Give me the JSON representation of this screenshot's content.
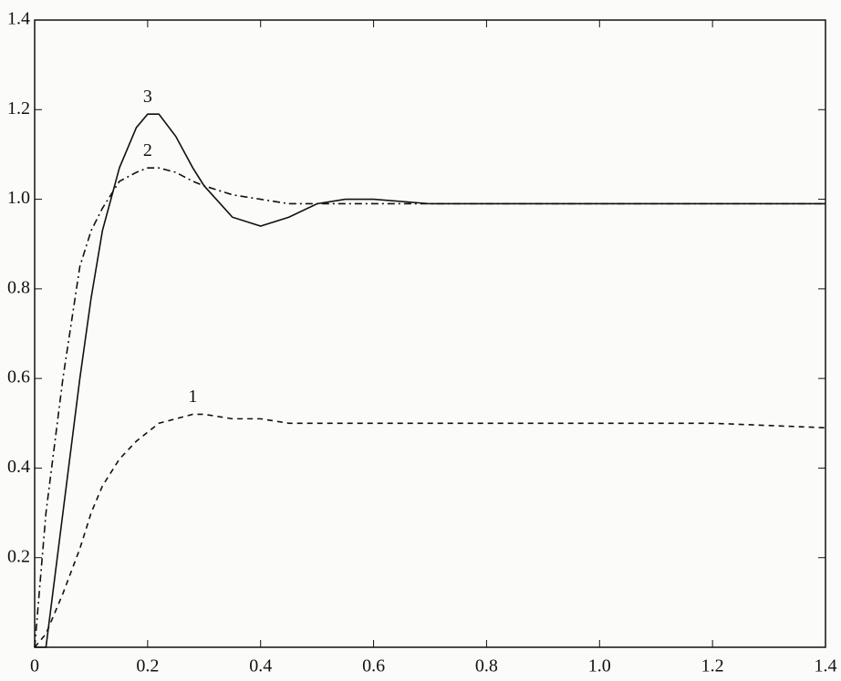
{
  "chart_data": {
    "type": "line",
    "x": [
      0,
      0.02,
      0.05,
      0.08,
      0.1,
      0.12,
      0.15,
      0.18,
      0.2,
      0.22,
      0.25,
      0.28,
      0.3,
      0.35,
      0.4,
      0.45,
      0.5,
      0.55,
      0.6,
      0.7,
      0.8,
      0.9,
      1.0,
      1.2,
      1.4
    ],
    "series": [
      {
        "name": "1",
        "color": "#111111",
        "dash": "dashed",
        "values": [
          0,
          0.03,
          0.12,
          0.22,
          0.3,
          0.36,
          0.42,
          0.46,
          0.48,
          0.5,
          0.51,
          0.52,
          0.52,
          0.51,
          0.51,
          0.5,
          0.5,
          0.5,
          0.5,
          0.5,
          0.5,
          0.5,
          0.5,
          0.5,
          0.49
        ]
      },
      {
        "name": "2",
        "color": "#111111",
        "dash": "dashdot",
        "values": [
          0,
          0.3,
          0.6,
          0.85,
          0.93,
          0.98,
          1.04,
          1.06,
          1.07,
          1.07,
          1.06,
          1.04,
          1.03,
          1.01,
          1.0,
          0.99,
          0.99,
          0.99,
          0.99,
          0.99,
          0.99,
          0.99,
          0.99,
          0.99,
          0.99
        ]
      },
      {
        "name": "3",
        "color": "#111111",
        "dash": "solid",
        "values": [
          0,
          0.0,
          0.3,
          0.6,
          0.78,
          0.93,
          1.07,
          1.16,
          1.19,
          1.19,
          1.14,
          1.07,
          1.03,
          0.96,
          0.94,
          0.96,
          0.99,
          1.0,
          1.0,
          0.99,
          0.99,
          0.99,
          0.99,
          0.99,
          0.99
        ]
      }
    ],
    "xlim": [
      0,
      1.4
    ],
    "ylim": [
      0,
      1.4
    ],
    "xticks": [
      0,
      0.2,
      0.4,
      0.6,
      0.8,
      {
        "value": 1,
        "label": "1.0"
      },
      1.2,
      1.4
    ],
    "yticks": [
      0.2,
      0.4,
      0.6,
      0.8,
      {
        "value": 1,
        "label": "1.0"
      },
      1.2,
      1.4
    ],
    "grid": false
  }
}
